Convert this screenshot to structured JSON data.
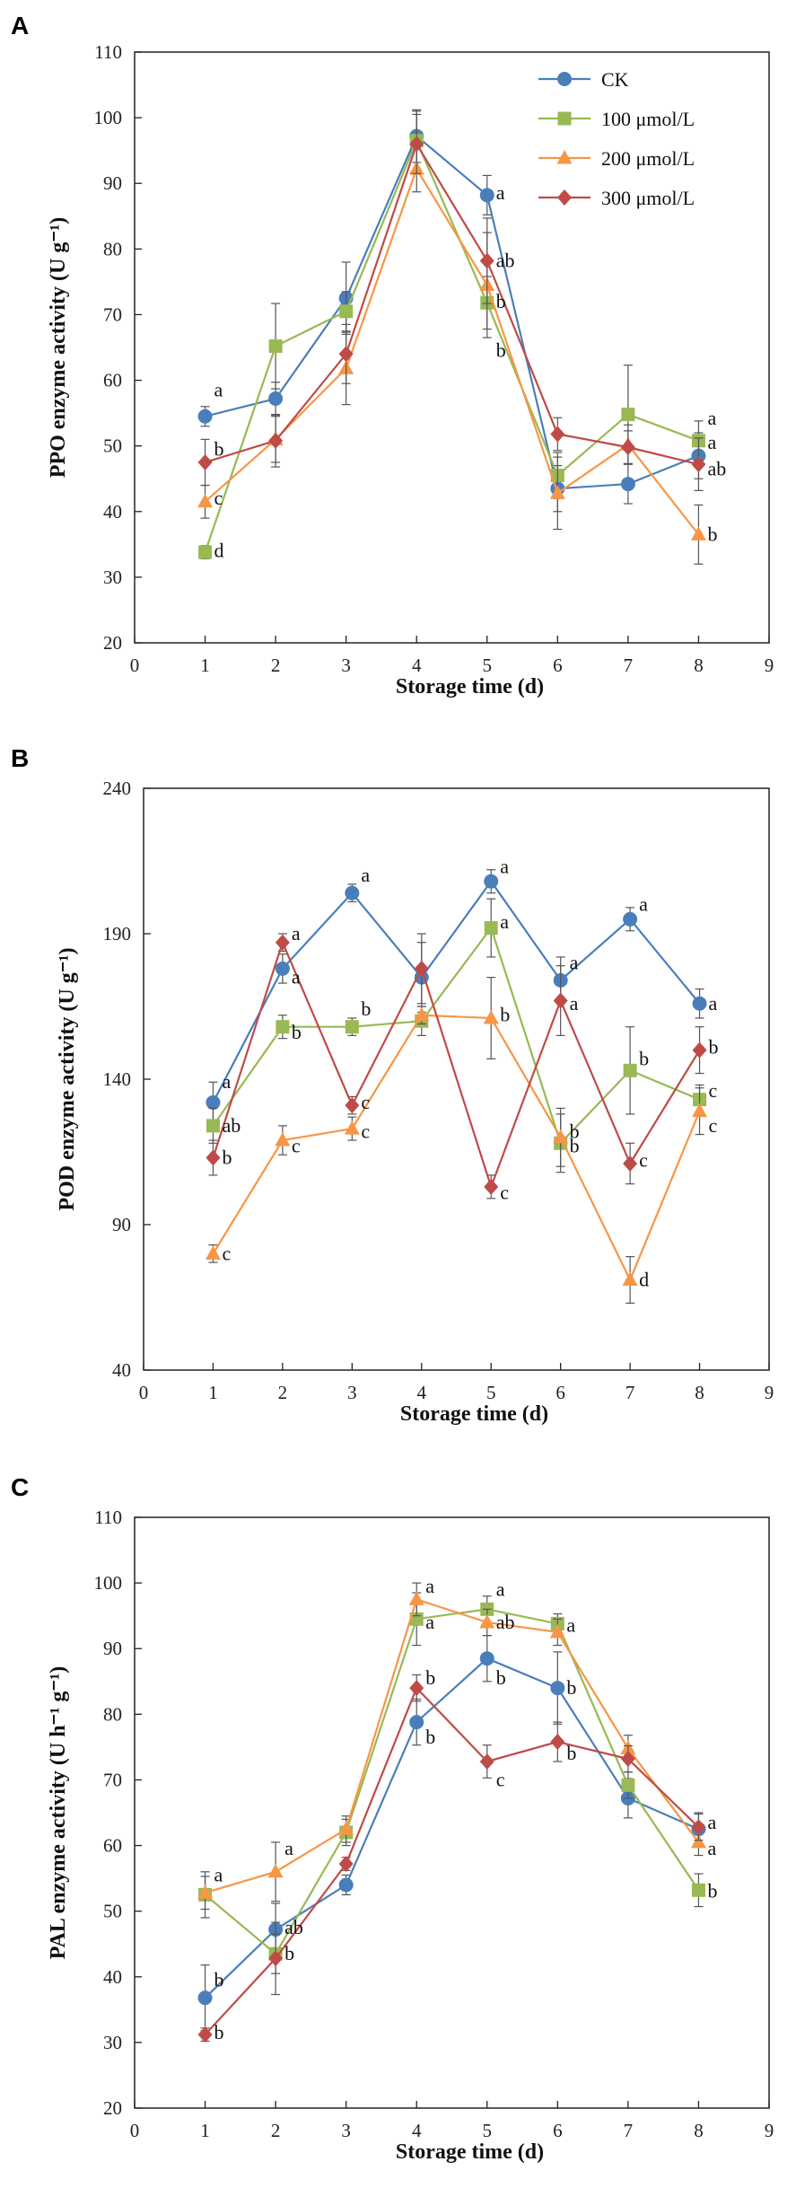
{
  "series_styles": [
    {
      "name": "CK",
      "color": "#4a7ebb",
      "marker": "circle"
    },
    {
      "name": "100 μmol/L",
      "color": "#98b954",
      "marker": "square"
    },
    {
      "name": "200 μmol/L",
      "color": "#f79646",
      "marker": "triangle"
    },
    {
      "name": "300 μmol/L",
      "color": "#be4b48",
      "marker": "diamond"
    }
  ],
  "chart_data": [
    {
      "panel": "A",
      "type": "line",
      "xlabel": "Storage time (d)",
      "ylabel": "PPO enzyme activity (U g⁻¹)",
      "xlim": [
        0,
        9
      ],
      "ylim": [
        20,
        110
      ],
      "xticks": [
        0,
        1,
        2,
        3,
        4,
        5,
        6,
        7,
        8,
        9
      ],
      "yticks": [
        20,
        30,
        40,
        50,
        60,
        70,
        80,
        90,
        100,
        110
      ],
      "x": [
        1,
        2,
        3,
        4,
        5,
        6,
        7,
        8
      ],
      "legend": "top-right",
      "series": [
        {
          "name": "CK",
          "values": [
            54.5,
            57.2,
            72.5,
            97.2,
            88.2,
            43.5,
            44.2,
            48.5
          ],
          "errors": [
            1.5,
            2.5,
            5.5,
            4.0,
            3.0,
            3.5,
            3.0,
            3.5
          ]
        },
        {
          "name": "100 μmol/L",
          "values": [
            33.8,
            65.2,
            70.5,
            96.5,
            71.8,
            45.5,
            54.8,
            50.8
          ],
          "errors": [
            1.0,
            6.5,
            3.0,
            4.5,
            4.0,
            3.5,
            7.5,
            3.0
          ]
        },
        {
          "name": "200 μmol/L",
          "values": [
            41.5,
            51.0,
            61.8,
            92.2,
            74.5,
            42.8,
            50.2,
            36.5
          ],
          "errors": [
            2.5,
            3.5,
            5.5,
            3.5,
            8.0,
            5.5,
            3.0,
            4.5
          ]
        },
        {
          "name": "300 μmol/L",
          "values": [
            47.5,
            50.8,
            64.0,
            96.0,
            78.2,
            51.8,
            49.8,
            47.2
          ],
          "errors": [
            3.5,
            4.0,
            4.5,
            4.5,
            6.5,
            2.5,
            2.5,
            4.0
          ]
        }
      ],
      "annotations": [
        {
          "text": "a",
          "x": 1,
          "y": 58.5
        },
        {
          "text": "b",
          "x": 1,
          "y": 49.5
        },
        {
          "text": "c",
          "x": 1,
          "y": 42.0
        },
        {
          "text": "d",
          "x": 1,
          "y": 34.0
        },
        {
          "text": "a",
          "x": 5,
          "y": 88.5
        },
        {
          "text": "ab",
          "x": 5,
          "y": 78.2
        },
        {
          "text": "b",
          "x": 5,
          "y": 72.0
        },
        {
          "text": "b",
          "x": 5,
          "y": 64.5
        },
        {
          "text": "a",
          "x": 8,
          "y": 54.2
        },
        {
          "text": "a",
          "x": 8,
          "y": 50.5
        },
        {
          "text": "ab",
          "x": 8,
          "y": 46.5
        },
        {
          "text": "b",
          "x": 8,
          "y": 36.5
        }
      ]
    },
    {
      "panel": "B",
      "type": "line",
      "xlabel": "Storage time (d)",
      "ylabel": "POD enzyme activity (U g⁻¹)",
      "xlim": [
        0,
        9
      ],
      "ylim": [
        40,
        240
      ],
      "xticks": [
        0,
        1,
        2,
        3,
        4,
        5,
        6,
        7,
        8,
        9
      ],
      "yticks": [
        40,
        90,
        140,
        190,
        240
      ],
      "x": [
        1,
        2,
        3,
        4,
        5,
        6,
        7,
        8
      ],
      "legend": "none",
      "series": [
        {
          "name": "CK",
          "values": [
            132,
            178,
            204,
            175,
            208,
            174,
            195,
            166
          ],
          "errors": [
            7,
            5,
            3,
            12,
            4,
            8,
            4,
            5
          ]
        },
        {
          "name": "100 μmol/L",
          "values": [
            124,
            158,
            158,
            160,
            192,
            118,
            143,
            133
          ],
          "errors": [
            6,
            4,
            3,
            5,
            10,
            10,
            15,
            5
          ]
        },
        {
          "name": "200 μmol/L",
          "values": [
            80,
            119,
            123,
            162,
            161,
            120,
            71,
            129
          ],
          "errors": [
            3,
            5,
            4,
            3,
            14,
            10,
            8,
            8
          ]
        },
        {
          "name": "300 μmol/L",
          "values": [
            113,
            187,
            131,
            178,
            103,
            167,
            111,
            150
          ],
          "errors": [
            6,
            3,
            3,
            12,
            4,
            12,
            7,
            8
          ]
        }
      ],
      "annotations": [
        {
          "text": "a",
          "x": 1,
          "y": 139
        },
        {
          "text": "ab",
          "x": 1,
          "y": 124
        },
        {
          "text": "b",
          "x": 1,
          "y": 113
        },
        {
          "text": "c",
          "x": 1,
          "y": 80
        },
        {
          "text": "a",
          "x": 2,
          "y": 190
        },
        {
          "text": "a",
          "x": 2,
          "y": 175
        },
        {
          "text": "b",
          "x": 2,
          "y": 156
        },
        {
          "text": "c",
          "x": 2,
          "y": 117
        },
        {
          "text": "a",
          "x": 3,
          "y": 210
        },
        {
          "text": "b",
          "x": 3,
          "y": 164
        },
        {
          "text": "c",
          "x": 3,
          "y": 132
        },
        {
          "text": "c",
          "x": 3,
          "y": 122
        },
        {
          "text": "a",
          "x": 5,
          "y": 213
        },
        {
          "text": "a",
          "x": 5,
          "y": 194
        },
        {
          "text": "b",
          "x": 5,
          "y": 162
        },
        {
          "text": "c",
          "x": 5,
          "y": 101
        },
        {
          "text": "a",
          "x": 6,
          "y": 180
        },
        {
          "text": "a",
          "x": 6,
          "y": 166
        },
        {
          "text": "b",
          "x": 6,
          "y": 122
        },
        {
          "text": "b",
          "x": 6,
          "y": 117
        },
        {
          "text": "a",
          "x": 7,
          "y": 200
        },
        {
          "text": "b",
          "x": 7,
          "y": 147
        },
        {
          "text": "c",
          "x": 7,
          "y": 112
        },
        {
          "text": "d",
          "x": 7,
          "y": 71
        },
        {
          "text": "a",
          "x": 8,
          "y": 166
        },
        {
          "text": "b",
          "x": 8,
          "y": 151
        },
        {
          "text": "c",
          "x": 8,
          "y": 136
        },
        {
          "text": "c",
          "x": 8,
          "y": 124
        }
      ]
    },
    {
      "panel": "C",
      "type": "line",
      "xlabel": "Storage time (d)",
      "ylabel": "PAL enzyme activity (U h⁻¹ g⁻¹)",
      "xlim": [
        0,
        9
      ],
      "ylim": [
        20,
        110
      ],
      "xticks": [
        0,
        1,
        2,
        3,
        4,
        5,
        6,
        7,
        8,
        9
      ],
      "yticks": [
        20,
        30,
        40,
        50,
        60,
        70,
        80,
        90,
        100,
        110
      ],
      "x": [
        1,
        2,
        3,
        4,
        5,
        6,
        7,
        8
      ],
      "legend": "none",
      "series": [
        {
          "name": "CK",
          "values": [
            36.8,
            47.2,
            54.0,
            78.8,
            88.5,
            84.0,
            67.2,
            62.5
          ],
          "errors": [
            5.0,
            4.0,
            1.5,
            3.5,
            3.5,
            5.5,
            3.0,
            2.5
          ]
        },
        {
          "name": "100 μmol/L",
          "values": [
            52.5,
            43.5,
            62.0,
            94.5,
            96.0,
            93.8,
            69.2,
            53.2
          ],
          "errors": [
            3.5,
            3.0,
            2.0,
            4.0,
            2.0,
            1.5,
            2.0,
            2.5
          ]
        },
        {
          "name": "200 μmol/L",
          "values": [
            52.8,
            56.0,
            62.5,
            97.5,
            94.0,
            92.5,
            74.8,
            60.5
          ],
          "errors": [
            2.5,
            4.5,
            2.0,
            2.5,
            2.0,
            2.0,
            2.0,
            2.0
          ]
        },
        {
          "name": "300 μmol/L",
          "values": [
            31.2,
            42.8,
            57.2,
            84.0,
            72.8,
            75.8,
            73.2,
            62.8
          ],
          "errors": [
            1.0,
            5.5,
            1.0,
            2.0,
            2.5,
            3.0,
            2.0,
            2.0
          ]
        }
      ],
      "annotations": [
        {
          "text": "a",
          "x": 1,
          "y": 55.5
        },
        {
          "text": "b",
          "x": 1,
          "y": 39.5
        },
        {
          "text": "b",
          "x": 1,
          "y": 31.5
        },
        {
          "text": "a",
          "x": 2,
          "y": 59.5
        },
        {
          "text": "ab",
          "x": 2,
          "y": 47.5
        },
        {
          "text": "b",
          "x": 2,
          "y": 43.5
        },
        {
          "text": "a",
          "x": 4,
          "y": 99.5
        },
        {
          "text": "a",
          "x": 4,
          "y": 94.0
        },
        {
          "text": "b",
          "x": 4,
          "y": 85.5
        },
        {
          "text": "b",
          "x": 4,
          "y": 76.5
        },
        {
          "text": "a",
          "x": 5,
          "y": 99.0
        },
        {
          "text": "ab",
          "x": 5,
          "y": 94.0
        },
        {
          "text": "b",
          "x": 5,
          "y": 85.5
        },
        {
          "text": "c",
          "x": 5,
          "y": 70.0
        },
        {
          "text": "a",
          "x": 6,
          "y": 93.5
        },
        {
          "text": "b",
          "x": 6,
          "y": 84.0
        },
        {
          "text": "b",
          "x": 6,
          "y": 74.0
        },
        {
          "text": "a",
          "x": 8,
          "y": 63.5
        },
        {
          "text": "a",
          "x": 8,
          "y": 59.5
        },
        {
          "text": "b",
          "x": 8,
          "y": 53.0
        }
      ]
    }
  ]
}
